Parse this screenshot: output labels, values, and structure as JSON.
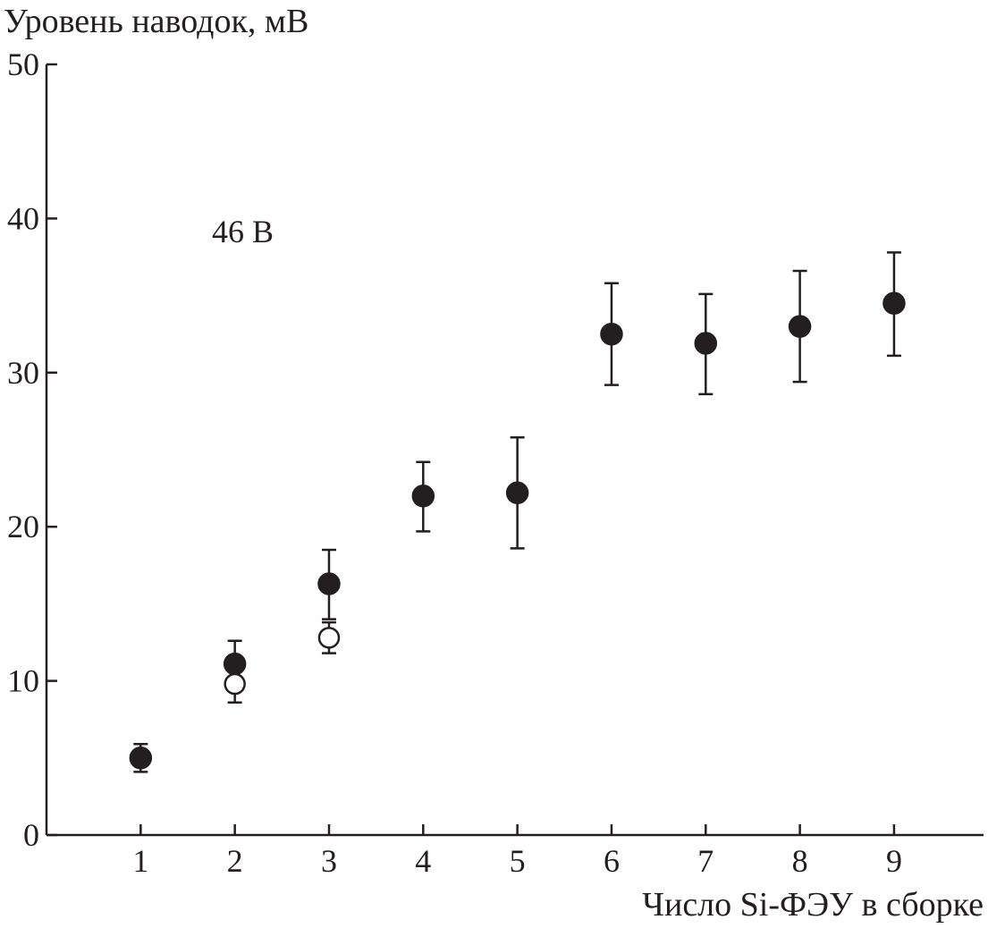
{
  "chart_data": {
    "type": "scatter",
    "ylabel": "Уровень наводок, мВ",
    "xlabel": "Число Si-ФЭУ в сборке",
    "annotation": "46 В",
    "xlim": [
      0,
      9.95
    ],
    "ylim": [
      0,
      50
    ],
    "x_ticks": [
      1,
      2,
      3,
      4,
      5,
      6,
      7,
      8,
      9
    ],
    "y_ticks": [
      0,
      10,
      20,
      30,
      40,
      50
    ],
    "grid": false,
    "series": [
      {
        "marker": "filled-circle",
        "color": "#231f20",
        "points": [
          {
            "x": 1,
            "y": 5.0,
            "err_low": 4.1,
            "err_high": 5.9
          },
          {
            "x": 2,
            "y": 11.1,
            "err_low": 9.9,
            "err_high": 12.6
          },
          {
            "x": 3,
            "y": 16.3,
            "err_low": 14.0,
            "err_high": 18.5
          },
          {
            "x": 4,
            "y": 22.0,
            "err_low": 19.7,
            "err_high": 24.2
          },
          {
            "x": 5,
            "y": 22.2,
            "err_low": 18.6,
            "err_high": 25.8
          },
          {
            "x": 6,
            "y": 32.5,
            "err_low": 29.2,
            "err_high": 35.8
          },
          {
            "x": 7,
            "y": 31.9,
            "err_low": 28.6,
            "err_high": 35.1
          },
          {
            "x": 8,
            "y": 33.0,
            "err_low": 29.4,
            "err_high": 36.6
          },
          {
            "x": 9,
            "y": 34.5,
            "err_low": 31.1,
            "err_high": 37.8
          }
        ]
      },
      {
        "marker": "open-circle",
        "color": "#231f20",
        "points": [
          {
            "x": 2,
            "y": 9.8,
            "err_low": 8.6,
            "err_high": 9.8
          },
          {
            "x": 3,
            "y": 12.8,
            "err_low": 11.8,
            "err_high": 13.8
          }
        ]
      }
    ]
  }
}
